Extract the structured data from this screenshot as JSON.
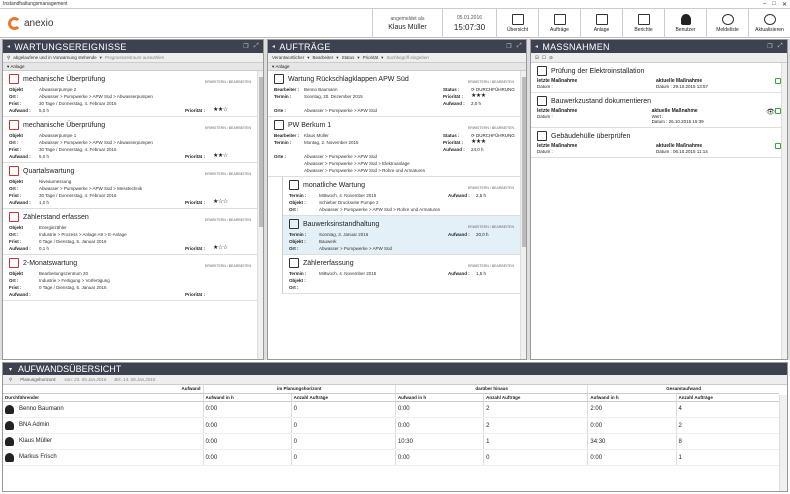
{
  "window": {
    "title": "Instandhaltungsmanagement"
  },
  "brand": {
    "name": "anexio",
    "accent": "#e8792d"
  },
  "header": {
    "user_label": "angemeldet als",
    "user_name": "Klaus Müller",
    "date": "05.01.2016",
    "time": "15:07:30",
    "buttons": [
      {
        "label": "Übersicht",
        "icon": "overview-icon"
      },
      {
        "label": "Aufträge",
        "icon": "orders-icon"
      },
      {
        "label": "Anlage",
        "icon": "facility-icon"
      },
      {
        "label": "Berichte",
        "icon": "reports-icon"
      },
      {
        "label": "Benutzer",
        "icon": "user-icon"
      },
      {
        "label": "Meldeliste",
        "icon": "alert-icon"
      },
      {
        "label": "Aktualisieren",
        "icon": "refresh-icon"
      }
    ]
  },
  "wartung": {
    "title": "WARTUNGSEREIGNISSE",
    "filter": "abgelaufene und in Vorwarnung stehende",
    "filter_hint": "Prognosezeitraum auswählen",
    "sub": "Anlage",
    "ctx": "ERWEITERN / BEARBEITEN",
    "labels": {
      "objekt": "Objekt",
      "ort": "Ort :",
      "frist": "Frist :",
      "aufwand": "Aufwand :",
      "prio": "Priorität :"
    },
    "cards": [
      {
        "title": "mechanische Überprüfung",
        "objekt": "Abwasserpumpe 2",
        "ort": "Abwasser > Pumpwerke > APW Süd > Abwasserpumpen",
        "frist": "30   Tage  /  Donnerstag, 4. Februar 2016",
        "aufwand": "5,0  h",
        "stars": "★★☆"
      },
      {
        "title": "mechanische Überprüfung",
        "objekt": "Abwasserpumpe 1",
        "ort": "Abwasser > Pumpwerke > APW Süd > Abwasserpumpen",
        "frist": "30   Tage  /  Donnerstag, 4. Februar 2016",
        "aufwand": "5,0  h",
        "stars": "★★☆"
      },
      {
        "title": "Quartalswartung",
        "objekt": "Niveaumessung",
        "ort": "Abwasser > Pumpwerke > APW Süd > Messtechnik",
        "frist": "30   Tage  /  Donnerstag, 4. Februar 2016",
        "aufwand": "1,0  h",
        "stars": "★☆☆"
      },
      {
        "title": "Zählerstand erfassen",
        "objekt": "Energiezähler",
        "ort": "Industrie > Prozess > Anlage A9 > E-Anlage",
        "frist": "0   Tage  /  Dienstag, 5. Januar 2016",
        "aufwand": "0,1  h",
        "stars": "★☆☆"
      },
      {
        "title": "2-Monatswartung",
        "objekt": "Bearbeitungszentrum 20",
        "ort": "Industrie > Fertigung > Vorfertigung",
        "frist": "0   Tage  /  Dienstag, 5. Januar 2016",
        "aufwand": "",
        "stars": ""
      }
    ]
  },
  "auftraege": {
    "title": "AUFTRÄGE",
    "filters": [
      "Verantwortlicher",
      "Bearbeiter",
      "Status",
      "Priorität"
    ],
    "filter_hint": "Suchbegriff eingeben",
    "sub": "Anlage",
    "ctx": "ERWEITERN / BEARBEITEN",
    "labels": {
      "bearbeiter": "Bearbeiter :",
      "termin": "Termin :",
      "status": "Status :",
      "prio": "Priorität :",
      "aufwand": "Aufwand :",
      "orte": "Orte :",
      "objekt": "Objekt :",
      "ort": "Ort :"
    },
    "orders": [
      {
        "title": "Wartung Rückschlagklappen APW Süd",
        "bearbeiter": "Benno Baumann",
        "termin": "Sonntag, 20. Dezember 2015",
        "status": "DURCHFÜHRUNG",
        "stars": "★★★",
        "aufwand": "2,0   h",
        "orte": "Abwasser > Pumpwerke > APW Süd"
      },
      {
        "title": "PW Berkum 1",
        "bearbeiter": "Klaus Müller",
        "termin": "Montag, 2. November 2015",
        "status": "DURCHFÜHRUNG",
        "stars": "★★★",
        "aufwand": "24,0   h",
        "orte": "Abwasser > Pumpwerke > APW Süd\nAbwasser > Pumpwerke > APW Süd > Elektroanlage\nAbwasser > Pumpwerke > APW Süd > Rohre und Armaturen"
      }
    ],
    "tasks": [
      {
        "title": "monatliche Wartung",
        "termin": "Mittwoch, 4. November 2015",
        "aufwand": "2,5   h",
        "objekt": "Schieber Druckseite Pumpe 2",
        "ort": "Abwasser > Pumpwerke > APW Süd > Rohre und Armaturen"
      },
      {
        "title": "Bauwerksinstandhaltung",
        "termin": "Sonntag, 3. Januar 2016",
        "aufwand": "20,0   h",
        "objekt": "Bauwerk",
        "ort": "Abwasser > Pumpwerke > APW Süd"
      },
      {
        "title": "Zählererfassung",
        "termin": "Mittwoch, 4. November 2015",
        "aufwand": "1,5   h",
        "objekt": "",
        "ort": ""
      }
    ]
  },
  "massnahmen": {
    "title": "MASSNAHMEN",
    "labels": {
      "letzte": "letzte Maßnahme",
      "aktuelle": "aktuelle Maßnahme",
      "datum": "Datum :",
      "wert": "Wert :"
    },
    "items": [
      {
        "title": "Prüfung der Elektroinstallation",
        "letzte_datum": "",
        "aktuelle_datum": "29.10.2015  13:57",
        "wert": ""
      },
      {
        "title": "Bauwerkzustand dokumentieren",
        "letzte_datum": "",
        "aktuelle_datum": "26.10.2015  15:39",
        "wert": ""
      },
      {
        "title": "Gebäudehülle überprüfen",
        "letzte_datum": "",
        "aktuelle_datum": "06.10.2015  11:14",
        "wert": ""
      }
    ]
  },
  "aufwand": {
    "title": "AUFWANDSÜBERSICHT",
    "horizon_label": "Planungshorizont:",
    "von": "von: 23. 05.Jan.2016",
    "bis": "Bis: 14. 06.Jan.2016",
    "group_headers": [
      "Aufwand",
      "im Planungshorizont",
      "darüber hinaus",
      "Gesamtaufwand"
    ],
    "col_headers": [
      "Durchführender",
      "Aufwand in h",
      "Anzahl Aufträge",
      "Aufwand in h",
      "Anzahl Aufträge",
      "Aufwand in h",
      "Anzahl Aufträge"
    ],
    "rows": [
      {
        "name": "Benno Baumann",
        "a1": "0:00",
        "n1": "0",
        "a2": "0:00",
        "n2": "2",
        "a3": "2:00",
        "n3": "4"
      },
      {
        "name": "BNA Admin",
        "a1": "0:00",
        "n1": "0",
        "a2": "0:00",
        "n2": "2",
        "a3": "0:00",
        "n3": "2"
      },
      {
        "name": "Klaus Müller",
        "a1": "0:00",
        "n1": "0",
        "a2": "10:30",
        "n2": "1",
        "a3": "34:30",
        "n3": "8"
      },
      {
        "name": "Markus Frisch",
        "a1": "0:00",
        "n1": "0",
        "a2": "0:00",
        "n2": "0",
        "a3": "0:00",
        "n3": "1"
      }
    ]
  }
}
